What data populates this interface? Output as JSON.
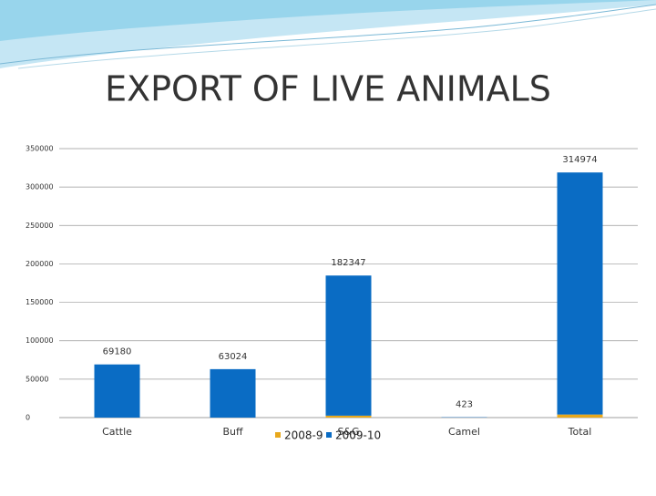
{
  "chart_data": {
    "type": "bar",
    "stacked": true,
    "title": "EXPORT OF LIVE ANIMALS",
    "categories": [
      "Cattle",
      "Buff",
      "S&G",
      "Camel",
      "Total"
    ],
    "series": [
      {
        "name": "2008-9",
        "color": "#e8a81c",
        "values": [
          0,
          0,
          2500,
          0,
          4000
        ]
      },
      {
        "name": "2009-10",
        "color": "#0a6cc4",
        "values": [
          69180,
          63024,
          182347,
          423,
          314974
        ]
      }
    ],
    "ylim": [
      0,
      350000
    ],
    "yticks": [
      0,
      50000,
      100000,
      150000,
      200000,
      250000,
      300000,
      350000
    ],
    "grid": true,
    "legend": "bottom"
  }
}
